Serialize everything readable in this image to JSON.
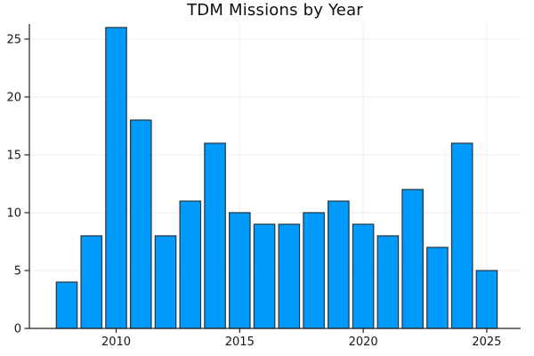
{
  "figure": {
    "background": "#ffffff"
  },
  "chart_data": {
    "type": "bar",
    "title": "TDM Missions by Year",
    "xlabel": "",
    "ylabel": "",
    "categories": [
      2008,
      2009,
      2010,
      2011,
      2012,
      2013,
      2014,
      2015,
      2016,
      2017,
      2018,
      2019,
      2020,
      2021,
      2022,
      2023,
      2024,
      2025
    ],
    "values": [
      4,
      8,
      26,
      18,
      8,
      11,
      16,
      10,
      9,
      9,
      10,
      11,
      9,
      8,
      12,
      7,
      16,
      5
    ],
    "xticks": [
      2010,
      2015,
      2020,
      2025
    ],
    "yticks": [
      0,
      5,
      10,
      15,
      20,
      25
    ],
    "ylim": [
      0,
      26.3
    ],
    "grid": true,
    "legend": "none",
    "bar_color": "#009AFA",
    "bar_edge_color": "#26343f",
    "axis_color": "#242424",
    "grid_color": "#ededed",
    "text_color": "#161616"
  }
}
